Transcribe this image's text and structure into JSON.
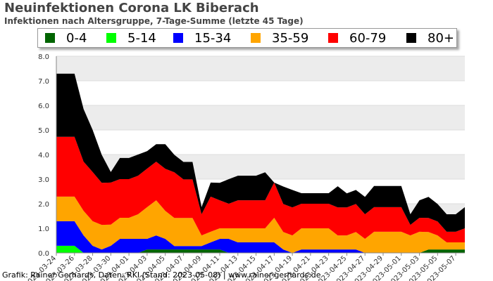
{
  "header": {
    "title": "Neuinfektionen Corona LK Biberach",
    "subtitle": "Infektionen nach Altersgruppe, 7-Tage-Summe (letzte 45 Tage)"
  },
  "footer": {
    "credit": "Grafik: Rainer Gerhards, Daten: RKI (Stand: 2023-05-08) | www.rainer-gerhards.de"
  },
  "legend": {
    "items": [
      {
        "label": "0-4",
        "color": "#006400"
      },
      {
        "label": "5-14",
        "color": "#00ff00"
      },
      {
        "label": "15-34",
        "color": "#0000ff"
      },
      {
        "label": "35-59",
        "color": "#ffa500"
      },
      {
        "label": "60-79",
        "color": "#ff0000"
      },
      {
        "label": "80+",
        "color": "#000000"
      }
    ]
  },
  "chart_data": {
    "type": "area",
    "stacked": true,
    "title": "Neuinfektionen Corona LK Biberach",
    "subtitle": "Infektionen nach Altersgruppe, 7-Tage-Summe (letzte 45 Tage)",
    "ylim": [
      0,
      8
    ],
    "yticks": [
      "0.0",
      "1.0",
      "2.0",
      "3.0",
      "4.0",
      "5.0",
      "6.0",
      "7.0",
      "8.0"
    ],
    "grid": "alternating horizontal bands",
    "legend_position": "top",
    "xtick_labels": [
      "2023-03-24",
      "2023-03-26",
      "2023-03-28",
      "2023-03-30",
      "2023-04-01",
      "2023-04-03",
      "2023-04-05",
      "2023-04-07",
      "2023-04-09",
      "2023-04-11",
      "2023-04-13",
      "2023-04-15",
      "2023-04-17",
      "2023-04-19",
      "2023-04-21",
      "2023-04-23",
      "2023-04-25",
      "2023-04-27",
      "2023-04-29",
      "2023-05-01",
      "2023-05-03",
      "2023-05-05",
      "2023-05-07"
    ],
    "x_start": "2023-03-24",
    "x_step_days": 1,
    "series": [
      {
        "name": "0-4",
        "color": "#006400",
        "values": [
          0.0,
          0.0,
          0.0,
          0.0,
          0.0,
          0.0,
          0.0,
          0.0,
          0.0,
          0.0,
          0.14,
          0.14,
          0.14,
          0.14,
          0.14,
          0.14,
          0.14,
          0.14,
          0.14,
          0.0,
          0.0,
          0.0,
          0.0,
          0.0,
          0.0,
          0.0,
          0.0,
          0.0,
          0.0,
          0.0,
          0.0,
          0.0,
          0.0,
          0.0,
          0.0,
          0.0,
          0.0,
          0.0,
          0.0,
          0.0,
          0.0,
          0.14,
          0.14,
          0.14,
          0.14,
          0.14
        ]
      },
      {
        "name": "5-14",
        "color": "#00ff00",
        "values": [
          0.29,
          0.29,
          0.29,
          0.0,
          0.0,
          0.0,
          0.0,
          0.0,
          0.0,
          0.0,
          0.0,
          0.0,
          0.0,
          0.0,
          0.0,
          0.0,
          0.0,
          0.0,
          0.0,
          0.0,
          0.0,
          0.0,
          0.0,
          0.0,
          0.0,
          0.0,
          0.0,
          0.0,
          0.0,
          0.0,
          0.0,
          0.0,
          0.0,
          0.0,
          0.0,
          0.0,
          0.0,
          0.0,
          0.0,
          0.0,
          0.0,
          0.0,
          0.0,
          0.0,
          0.0,
          0.0
        ]
      },
      {
        "name": "15-34",
        "color": "#0000ff",
        "values": [
          1.0,
          1.0,
          1.0,
          0.71,
          0.29,
          0.14,
          0.29,
          0.57,
          0.57,
          0.57,
          0.43,
          0.57,
          0.43,
          0.14,
          0.14,
          0.14,
          0.14,
          0.29,
          0.43,
          0.57,
          0.43,
          0.43,
          0.43,
          0.43,
          0.43,
          0.14,
          0.0,
          0.14,
          0.14,
          0.14,
          0.14,
          0.14,
          0.14,
          0.14,
          0.0,
          0.0,
          0.0,
          0.0,
          0.0,
          0.0,
          0.0,
          0.0,
          0.0,
          0.0,
          0.0,
          0.0
        ]
      },
      {
        "name": "35-59",
        "color": "#ffa500",
        "values": [
          1.0,
          1.0,
          1.0,
          1.0,
          1.0,
          1.0,
          0.86,
          0.86,
          0.86,
          1.0,
          1.29,
          1.43,
          1.14,
          1.14,
          1.14,
          1.14,
          0.43,
          0.43,
          0.43,
          0.43,
          0.57,
          0.57,
          0.57,
          0.57,
          1.0,
          0.71,
          0.71,
          0.86,
          0.86,
          0.86,
          0.86,
          0.57,
          0.57,
          0.71,
          0.57,
          0.86,
          0.86,
          0.86,
          0.86,
          0.71,
          0.86,
          0.71,
          0.57,
          0.29,
          0.29,
          0.29
        ]
      },
      {
        "name": "60-79",
        "color": "#ff0000",
        "values": [
          2.43,
          2.43,
          2.43,
          2.0,
          2.0,
          1.71,
          1.71,
          1.57,
          1.57,
          1.57,
          1.57,
          1.57,
          1.71,
          1.86,
          1.57,
          1.57,
          0.86,
          1.43,
          1.14,
          1.0,
          1.14,
          1.14,
          1.14,
          1.14,
          1.43,
          1.14,
          1.14,
          1.0,
          1.0,
          1.0,
          1.0,
          1.14,
          1.14,
          1.14,
          1.0,
          1.0,
          1.0,
          1.0,
          1.0,
          0.43,
          0.57,
          0.57,
          0.57,
          0.43,
          0.43,
          0.57
        ]
      },
      {
        "name": "80+",
        "color": "#000000",
        "values": [
          2.57,
          2.57,
          2.57,
          2.14,
          1.71,
          1.14,
          0.43,
          0.86,
          0.86,
          0.86,
          0.71,
          0.71,
          1.0,
          0.71,
          0.71,
          0.71,
          0.29,
          0.57,
          0.71,
          1.0,
          1.0,
          1.0,
          1.0,
          1.14,
          0.0,
          0.71,
          0.71,
          0.43,
          0.43,
          0.43,
          0.43,
          0.86,
          0.57,
          0.57,
          0.71,
          0.86,
          0.86,
          0.86,
          0.86,
          0.43,
          0.71,
          0.86,
          0.71,
          0.71,
          0.71,
          0.86
        ]
      }
    ]
  }
}
